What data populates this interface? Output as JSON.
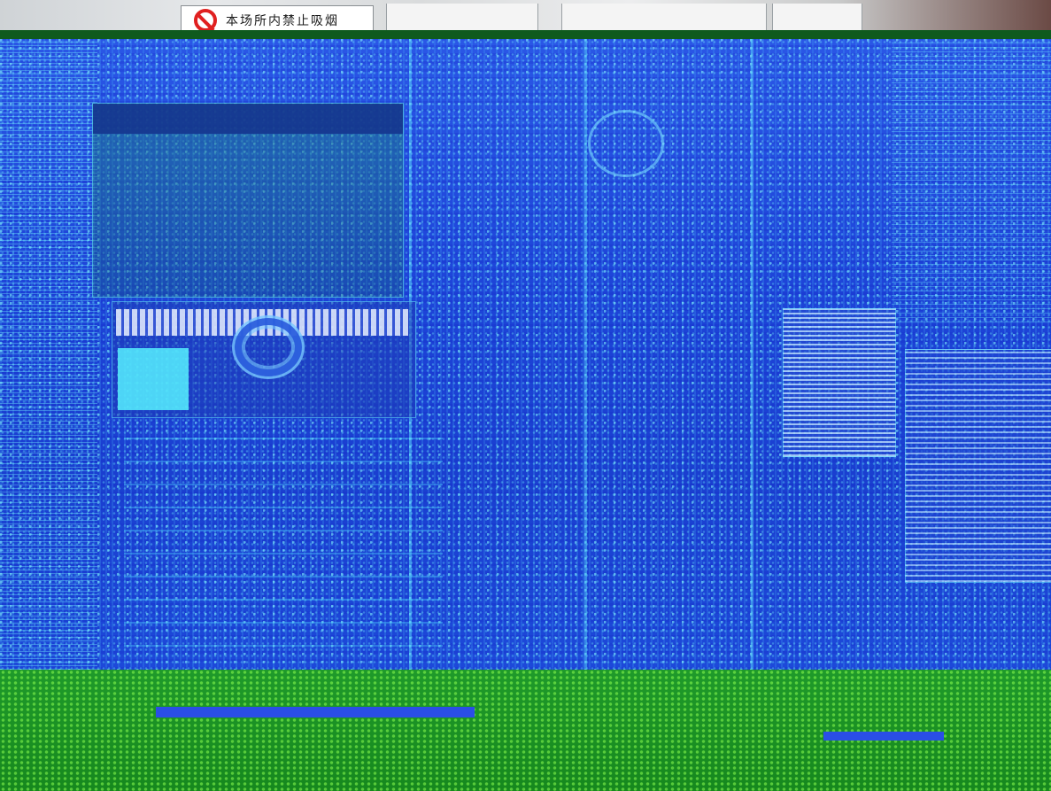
{
  "sign": {
    "text": "本场所内禁止吸烟"
  }
}
